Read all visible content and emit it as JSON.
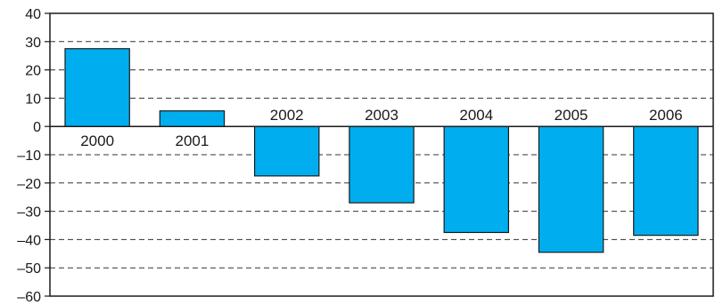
{
  "chart_data": {
    "type": "bar",
    "categories": [
      "2000",
      "2001",
      "2002",
      "2003",
      "2004",
      "2005",
      "2006"
    ],
    "values": [
      27.5,
      5.5,
      -17.5,
      -27,
      -37.5,
      -44.5,
      -38.5
    ],
    "ylim": [
      -60,
      40
    ],
    "yticks": [
      40,
      30,
      20,
      10,
      0,
      -10,
      -20,
      -30,
      -40,
      -50,
      -60
    ],
    "ytick_labels": [
      "40",
      "30",
      "20",
      "10",
      "0",
      "–10",
      "–20",
      "–30",
      "–40",
      "–50",
      "–60"
    ],
    "grid": "dashed horizontal",
    "bar_color": "#00AEEF",
    "bar_edge_color": "#1a1a1a"
  }
}
